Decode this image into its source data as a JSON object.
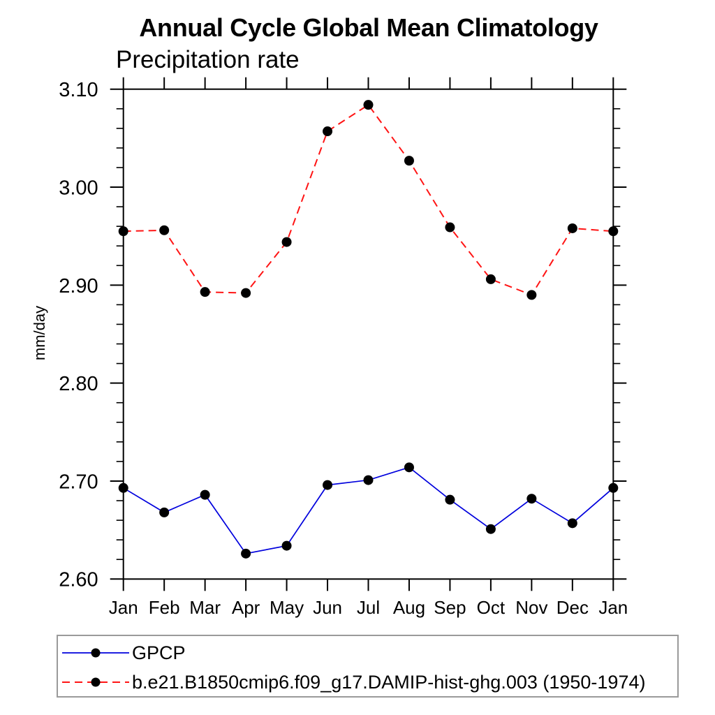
{
  "chart_data": {
    "type": "line",
    "title": "Annual Cycle Global Mean Climatology",
    "subtitle": "Precipitation rate",
    "ylabel": "mm/day",
    "categories": [
      "Jan",
      "Feb",
      "Mar",
      "Apr",
      "May",
      "Jun",
      "Jul",
      "Aug",
      "Sep",
      "Oct",
      "Nov",
      "Dec",
      "Jan"
    ],
    "ylim": [
      2.6,
      3.1
    ],
    "ytick_labels": [
      "2.60",
      "2.70",
      "2.80",
      "2.90",
      "3.00",
      "3.10"
    ],
    "ytick_major_step": 0.1,
    "ytick_minor_step": 0.02,
    "grid": false,
    "legend_position": "bottom-left",
    "axis_color": "#000000",
    "marker": {
      "shape": "circle",
      "color": "#000000",
      "radius": 7
    },
    "series": [
      {
        "name": "GPCP",
        "color": "#0000dd",
        "style": "solid",
        "values": [
          2.693,
          2.668,
          2.686,
          2.626,
          2.634,
          2.696,
          2.701,
          2.714,
          2.681,
          2.651,
          2.682,
          2.657,
          2.693
        ]
      },
      {
        "name": "b.e21.B1850cmip6.f09_g17.DAMIP-hist-ghg.003 (1950-1974)",
        "color": "#ff1414",
        "style": "dashed",
        "values": [
          2.955,
          2.956,
          2.893,
          2.892,
          2.944,
          3.057,
          3.084,
          3.027,
          2.959,
          2.906,
          2.89,
          2.958,
          2.955
        ]
      }
    ]
  }
}
